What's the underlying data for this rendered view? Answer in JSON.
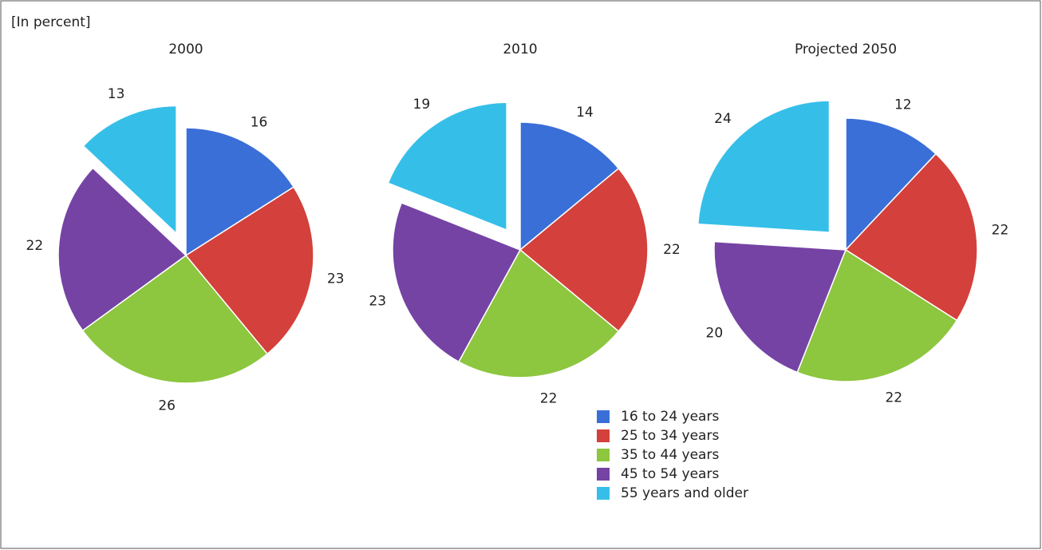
{
  "subtitle": "[In percent]",
  "chart_data": [
    {
      "type": "pie",
      "title": "2000",
      "categories": [
        "16 to 24 years",
        "25 to 34 years",
        "35 to 44 years",
        "45 to 54 years",
        "55 years and older"
      ],
      "values": [
        16,
        23,
        26,
        22,
        13
      ],
      "colors": [
        "#3a6fd8",
        "#d4403b",
        "#8dc63f",
        "#7543a4",
        "#35bfe8"
      ]
    },
    {
      "type": "pie",
      "title": "2010",
      "categories": [
        "16 to 24 years",
        "25 to 34 years",
        "35 to 44 years",
        "45 to 54 years",
        "55 years and older"
      ],
      "values": [
        14,
        22,
        22,
        23,
        19
      ],
      "colors": [
        "#3a6fd8",
        "#d4403b",
        "#8dc63f",
        "#7543a4",
        "#35bfe8"
      ]
    },
    {
      "type": "pie",
      "title": "Projected 2050",
      "categories": [
        "16 to 24 years",
        "25 to 34 years",
        "35 to 44 years",
        "45 to 54 years",
        "55 years and older"
      ],
      "values": [
        12,
        22,
        22,
        20,
        24
      ],
      "colors": [
        "#3a6fd8",
        "#d4403b",
        "#8dc63f",
        "#7543a4",
        "#35bfe8"
      ]
    }
  ]
}
